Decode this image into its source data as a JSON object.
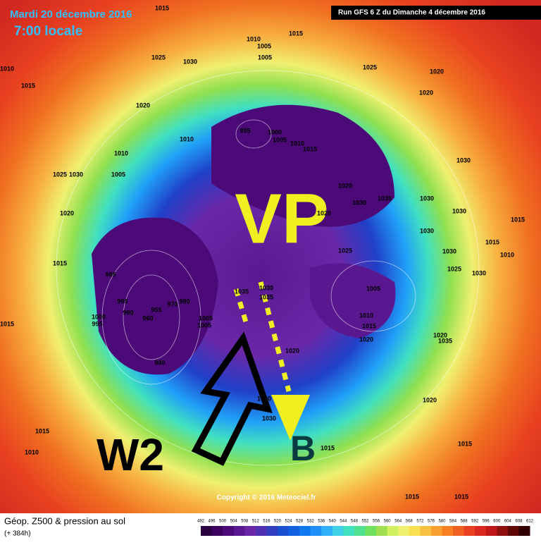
{
  "header": {
    "date": "Mardi 20 décembre 2016",
    "time": "7:00 locale",
    "run": "Run GFS 6 Z du Dimanche 4 décembre 2016"
  },
  "annotations": {
    "vortex": "VP",
    "wave": "W2",
    "block": "B"
  },
  "copyright": "Copyright © 2016 Meteociel.fr",
  "legend": {
    "title": "Géop. Z500 & pression au sol",
    "lead": "(+ 384h)",
    "scale": [
      492,
      496,
      500,
      504,
      508,
      512,
      516,
      520,
      524,
      528,
      532,
      536,
      540,
      544,
      548,
      552,
      556,
      560,
      564,
      568,
      572,
      576,
      580,
      584,
      588,
      592,
      596,
      600,
      604,
      608,
      612
    ],
    "colors": [
      "#2a0040",
      "#3c0060",
      "#4b0a78",
      "#5a1890",
      "#6a28a8",
      "#5030b0",
      "#3040c0",
      "#1a50d0",
      "#1060e0",
      "#1078f0",
      "#2090f8",
      "#30b0f8",
      "#40d0e8",
      "#40e0c0",
      "#50e090",
      "#70e060",
      "#a0e050",
      "#d0f060",
      "#f0f070",
      "#f8e050",
      "#f8c040",
      "#f8a030",
      "#f88020",
      "#f06020",
      "#e84020",
      "#d82820",
      "#c01818",
      "#901010",
      "#600808",
      "#300000"
    ]
  },
  "isobar_labels": [
    "1015",
    "1010",
    "1015",
    "1025",
    "1030",
    "1010",
    "1005",
    "1005",
    "1015",
    "1025",
    "1020",
    "1020",
    "1020",
    "1010",
    "995",
    "1000",
    "1005",
    "1010",
    "1015",
    "1010",
    "1005",
    "1025",
    "1030",
    "1020",
    "1030",
    "1035",
    "1030",
    "1030",
    "1020",
    "1020",
    "1030",
    "1030",
    "1015",
    "1015",
    "1010",
    "1030",
    "1025",
    "1015",
    "985",
    "1025",
    "1030",
    "1030",
    "1035",
    "1035",
    "1005",
    "995",
    "990",
    "955",
    "960",
    "970",
    "980",
    "1000",
    "995",
    "1005",
    "1005",
    "1010",
    "1015",
    "1020",
    "1020",
    "1035",
    "1015",
    "980",
    "1020",
    "1030",
    "1030",
    "1015",
    "1010",
    "1015",
    "1015",
    "1015",
    "1015",
    "1020"
  ]
}
